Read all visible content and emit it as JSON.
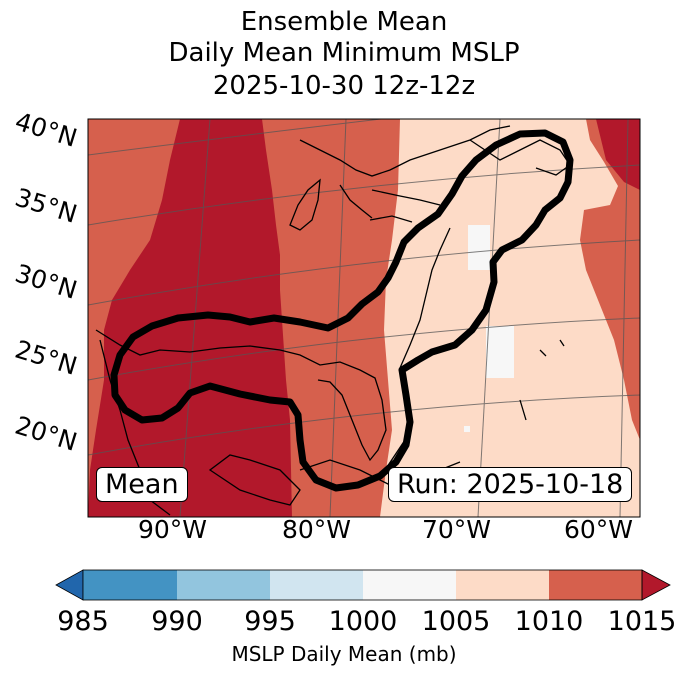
{
  "title": {
    "line1": "Ensemble Mean",
    "line2": "Daily Mean Minimum MSLP",
    "line3": "2025-10-30 12z-12z"
  },
  "map": {
    "lat_labels": [
      "40°N",
      "35°N",
      "30°N",
      "25°N",
      "20°N"
    ],
    "lon_labels": [
      "90°W",
      "80°W",
      "70°W",
      "60°W"
    ],
    "mean_box": "Mean",
    "run_box": "Run: 2025-10-18"
  },
  "colorbar": {
    "ticks": [
      "985",
      "990",
      "995",
      "1000",
      "1005",
      "1010",
      "1015"
    ],
    "label": "MSLP Daily Mean (mb)",
    "colors": {
      "under": "#2166ac",
      "985_990": "#4393c3",
      "990_995": "#92c5de",
      "995_1000": "#d1e5f0",
      "1000_1005": "#f7f7f7",
      "1005_1010": "#fddbc7",
      "1010_1015": "#d6604d",
      "over": "#b2182b"
    }
  }
}
